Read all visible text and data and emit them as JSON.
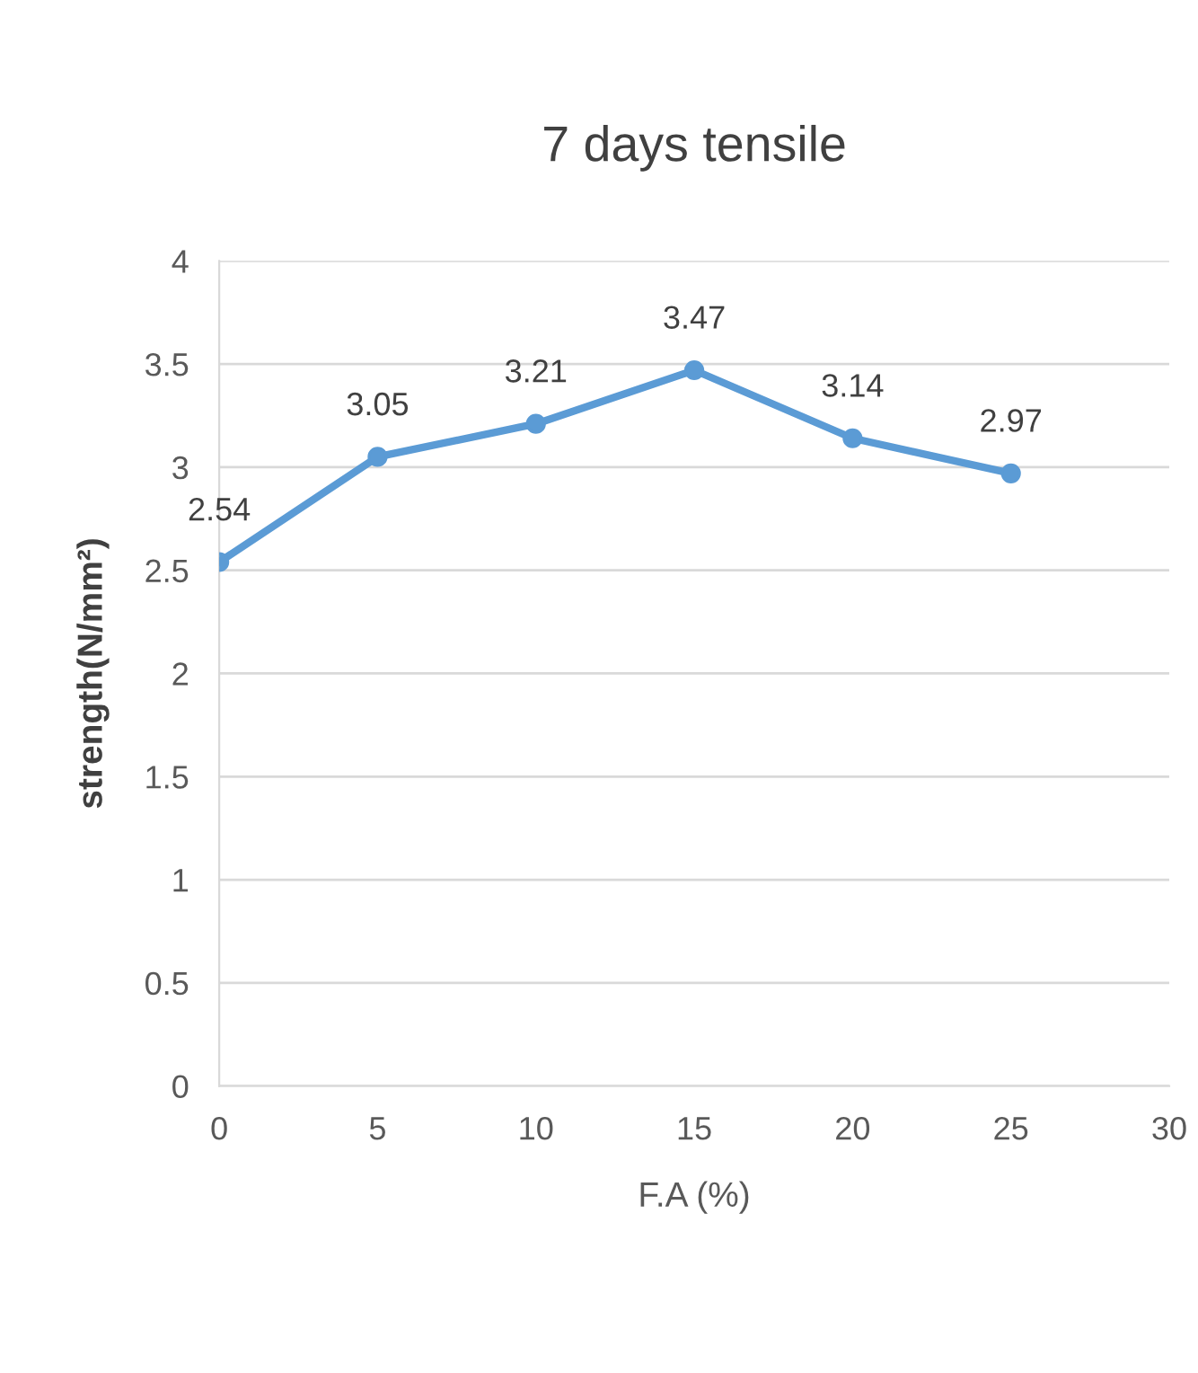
{
  "chart_data": {
    "type": "line",
    "title": "7 days tensile",
    "xlabel": "F.A (%)",
    "ylabel": "strength(N/mm²)",
    "x": [
      0,
      5,
      10,
      15,
      20,
      25
    ],
    "series": [
      {
        "color": "#5b9bd5",
        "values": [
          2.54,
          3.05,
          3.21,
          3.47,
          3.14,
          2.97
        ]
      }
    ],
    "xlim": [
      0,
      30
    ],
    "xticks": [
      0,
      5,
      10,
      15,
      20,
      25,
      30
    ],
    "ylim": [
      0,
      4
    ],
    "yticks": [
      0,
      0.5,
      1,
      1.5,
      2,
      2.5,
      3,
      3.5,
      4
    ],
    "grid": "y",
    "marker": "circle",
    "line_style": "solid",
    "data_labels": true,
    "legend": false
  }
}
